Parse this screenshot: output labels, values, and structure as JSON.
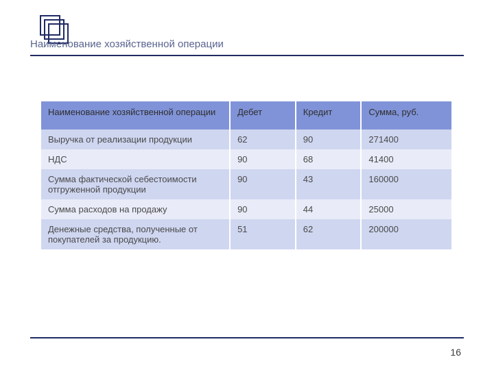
{
  "page": {
    "title": "Наименование хозяйственной операции",
    "number": "16"
  },
  "decor": {
    "square_border_color": "#1f2a63",
    "rule_color": "#1f2a63"
  },
  "table": {
    "type": "table",
    "header_bg": "#8093d8",
    "band_colors": [
      "#cfd6f0",
      "#e9ecf8"
    ],
    "text_color": "#4a4a4a",
    "header_text_color": "#2e2e2e",
    "font_size_pt": 10,
    "col_widths_pct": [
      46,
      16,
      16,
      22
    ],
    "columns": [
      "Наименование хозяйственной операции",
      "Дебет",
      "Кредит",
      "Сумма, руб."
    ],
    "rows": [
      {
        "c0": "Выручка от реализации продукции",
        "c1": "62",
        "c2": "90",
        "c3": "271400"
      },
      {
        "c0": "  НДС",
        "c1": "90",
        "c2": "68",
        "c3": "41400"
      },
      {
        "c0": "Сумма фактической себестоимости отгруженной продукции",
        "c1": "90",
        "c2": "43",
        "c3": "160000"
      },
      {
        "c0": "Сумма расходов на продажу",
        "c1": "90",
        "c2": "44",
        "c3": "25000"
      },
      {
        "c0": "Денежные средства, полученные от покупателей за продукцию.",
        "c1": "51",
        "c2": "62",
        "c3": "200000"
      }
    ]
  }
}
